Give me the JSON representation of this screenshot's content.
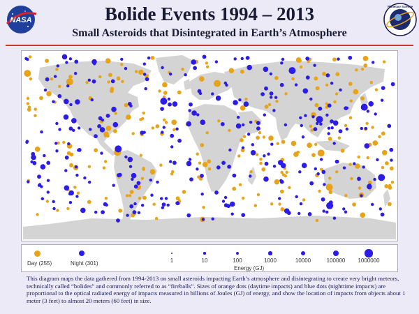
{
  "header": {
    "title": "Bolide Events 1994 – 2013",
    "subtitle": "Small Asteroids that Disintegrated in Earth’s Atmosphere",
    "nasa_logo_text": "NASA",
    "ps_logo_text": "Planetary Science"
  },
  "legend": {
    "day_label": "Day (255)",
    "night_label": "Night (301)",
    "energy_title": "Energy (GJ)",
    "energy_levels": [
      "1",
      "10",
      "100",
      "1000",
      "10000",
      "100000",
      "1000000"
    ]
  },
  "colors": {
    "day": "#e8a317",
    "night": "#2b1ce8",
    "land": "#d4d4d4",
    "title_rule": "#c83a2a"
  },
  "caption": "This diagram maps the data gathered from 1994-2013 on small asteroids impacting Earth’s atmosphere and disintegrating to create very bright meteors, technically called “bolides” and commonly referred to as “fireballs”.  Sizes of orange dots (daytime impacts) and blue dots (nighttime impacts) are proportional to the optical radiated energy of impacts measured in billions of Joules (GJ) of energy, and show the location of impacts from objects about 1 meter (3 feet) to almost 20 meters (60 feet) in size."
}
